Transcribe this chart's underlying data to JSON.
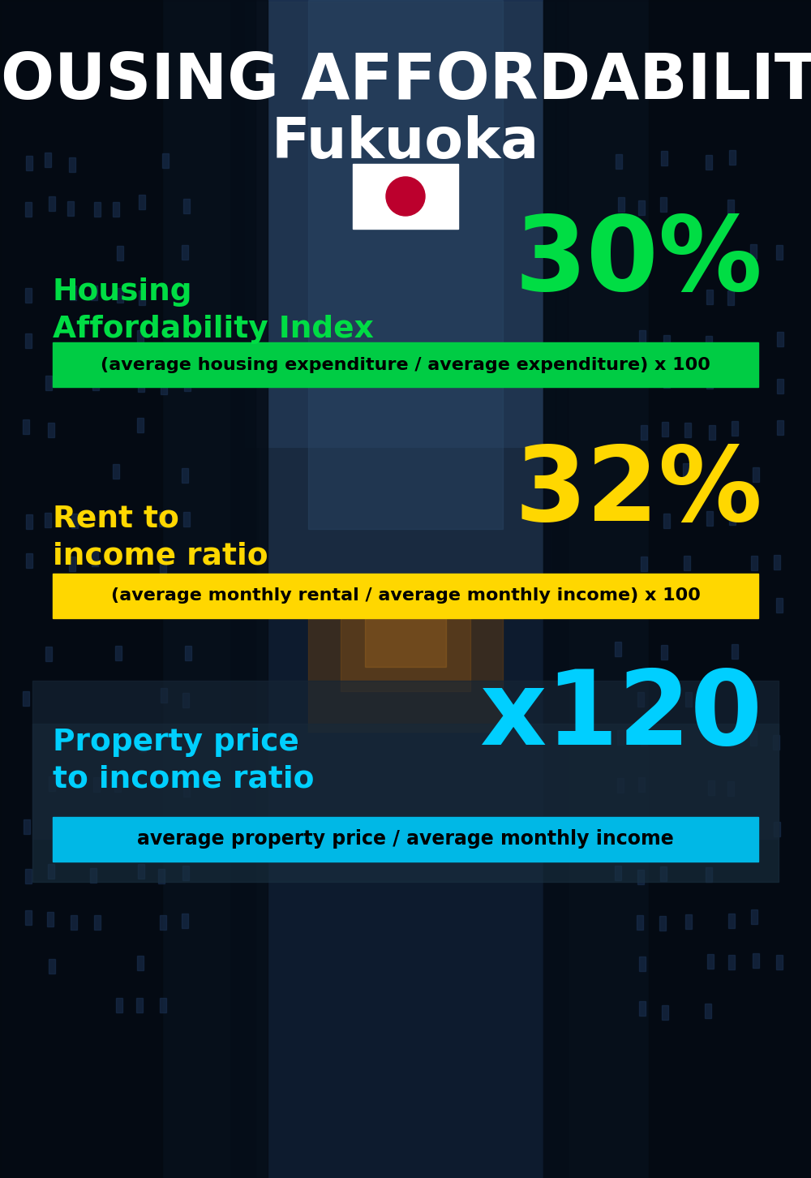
{
  "title_line1": "HOUSING AFFORDABILITY",
  "title_line2": "Fukuoka",
  "bg_color": "#0a1628",
  "section1_label": "Property price\nto income ratio",
  "section1_value": "x120",
  "section1_label_color": "#00cfff",
  "section1_value_color": "#00cfff",
  "section1_banner": "average property price / average monthly income",
  "section1_banner_bg": "#00b8e6",
  "section1_overlay_color": "#1a2d40",
  "section1_overlay_alpha": 0.65,
  "section2_label": "Rent to\nincome ratio",
  "section2_value": "32%",
  "section2_label_color": "#ffd700",
  "section2_value_color": "#ffd700",
  "section2_banner": "(average monthly rental / average monthly income) x 100",
  "section2_banner_bg": "#ffd700",
  "section3_label": "Housing\nAffordability Index",
  "section3_value": "30%",
  "section3_label_color": "#00dd44",
  "section3_value_color": "#00dd44",
  "section3_banner": "(average housing expenditure / average expenditure) x 100",
  "section3_banner_bg": "#00cc44",
  "flag_white": "#ffffff",
  "flag_red": "#bc002d",
  "text_white": "#ffffff",
  "text_black": "#000000"
}
